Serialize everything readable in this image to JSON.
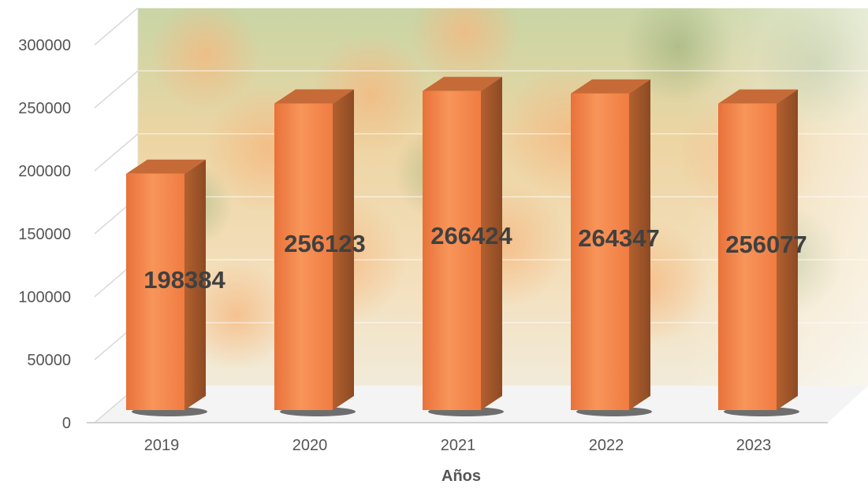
{
  "chart_data": {
    "type": "bar",
    "title": "",
    "xlabel": "Años",
    "ylabel": "",
    "categories": [
      "2019",
      "2020",
      "2021",
      "2022",
      "2023"
    ],
    "values": [
      198384,
      256123,
      266424,
      264347,
      256077
    ],
    "data_labels": [
      "198384",
      "256123",
      "266424",
      "264347",
      "256077"
    ],
    "yticks": [
      "0",
      "50000",
      "100000",
      "150000",
      "200000",
      "250000",
      "300000"
    ],
    "ylim": [
      0,
      300000
    ],
    "grid": true,
    "legend": "none",
    "colors": {
      "bar_front": "#f58a4e",
      "bar_side": "#a85a30",
      "bar_top": "#c66a37",
      "title": "#1f5fa8"
    }
  }
}
